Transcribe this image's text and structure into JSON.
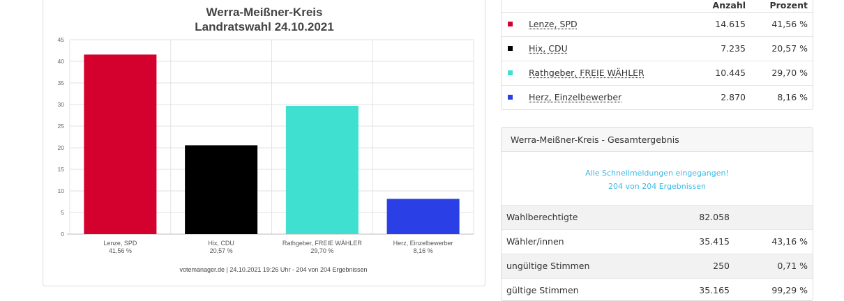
{
  "chart_data": {
    "type": "bar",
    "title": "Werra-Meißner-Kreis",
    "subtitle": "Landratswahl 24.10.2021",
    "categories": [
      "Lenze, SPD",
      "Hix, CDU",
      "Rathgeber, FREIE WÄHLER",
      "Herz, Einzelbewerber"
    ],
    "category_pct_labels": [
      "41,56 %",
      "20,57 %",
      "29,70 %",
      "8,16 %"
    ],
    "values": [
      41.56,
      20.57,
      29.7,
      8.16
    ],
    "colors": [
      "#d4002e",
      "#000000",
      "#40e0d0",
      "#2a3fe6"
    ],
    "yticks": [
      "0",
      "5",
      "10",
      "15",
      "20",
      "25",
      "30",
      "35",
      "40",
      "45"
    ],
    "ylim": [
      0,
      45
    ],
    "grid": true,
    "footer": "votemanager.de | 24.10.2021 19:26 Uhr - 204 von 204 Ergebnissen"
  },
  "candidates": {
    "header_count": "Anzahl",
    "header_pct": "Prozent",
    "rows": [
      {
        "name": "Lenze, SPD",
        "count": "14.615",
        "pct": "41,56 %",
        "color": "#d4002e"
      },
      {
        "name": "Hix, CDU",
        "count": "7.235",
        "pct": "20,57 %",
        "color": "#000000"
      },
      {
        "name": "Rathgeber, FREIE WÄHLER",
        "count": "10.445",
        "pct": "29,70 %",
        "color": "#40e0d0"
      },
      {
        "name": "Herz, Einzelbewerber",
        "count": "2.870",
        "pct": "8,16 %",
        "color": "#2a3fe6"
      }
    ]
  },
  "result": {
    "title": "Werra-Meißner-Kreis - Gesamtergebnis",
    "notice_line1": "Alle Schnellmeldungen eingegangen!",
    "notice_line2": "204 von 204 Ergebnissen",
    "stats": [
      {
        "label": "Wahlberechtigte",
        "value": "82.058",
        "pct": ""
      },
      {
        "label": "Wähler/innen",
        "value": "35.415",
        "pct": "43,16 %"
      },
      {
        "label": "ungültige Stimmen",
        "value": "250",
        "pct": "0,71 %"
      },
      {
        "label": "gültige Stimmen",
        "value": "35.165",
        "pct": "99,29 %"
      }
    ]
  }
}
